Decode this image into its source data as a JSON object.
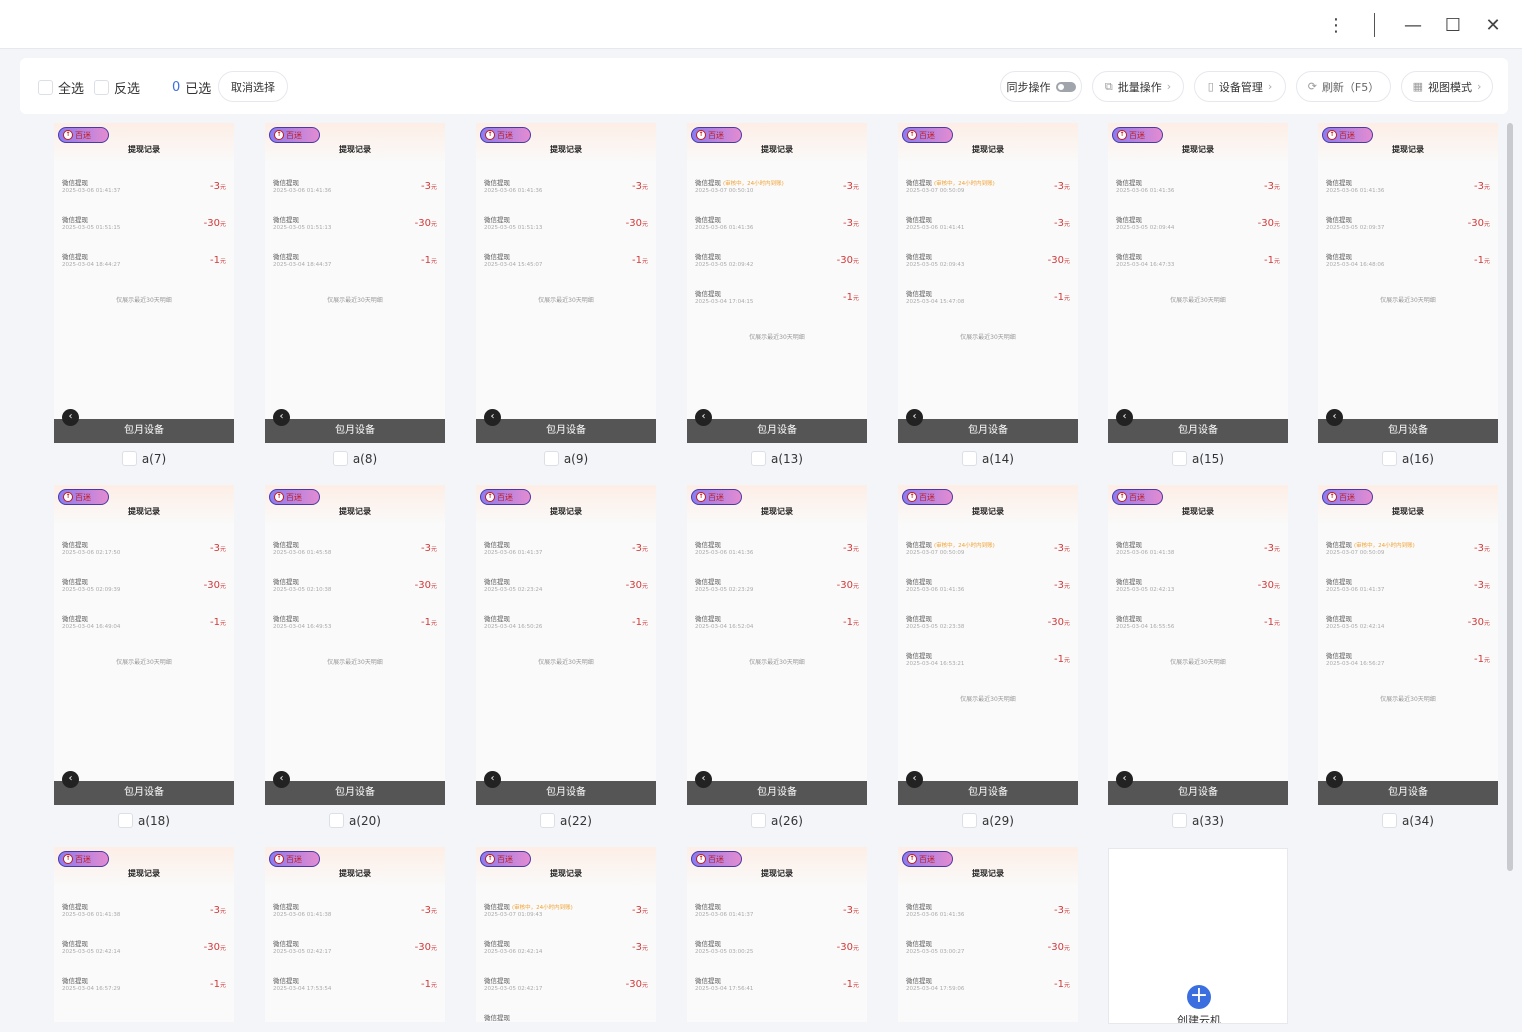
{
  "window": {
    "menu_icon": "more-vertical-icon",
    "minimize_icon": "minimize-icon",
    "maximize_icon": "maximize-icon",
    "close_icon": "close-icon"
  },
  "toolbar": {
    "select_all": "全选",
    "invert_select": "反选",
    "selected_count": "0",
    "selected_label": "已选",
    "cancel_select": "取消选择",
    "sync": "同步操作",
    "sync_on": false,
    "batch": "批量操作",
    "devices": "设备管理",
    "refresh": "刷新（F5）",
    "view_mode": "视图模式"
  },
  "screen": {
    "title": "提现记录",
    "logo": "百迷",
    "item_name": "微信提现",
    "pending_note": "(审核中，24小时内到账)",
    "unit": "元",
    "footer": "仅展示最近30天明细",
    "bottom_bar": "包月设备"
  },
  "devices": [
    {
      "label": "a(7)",
      "records": [
        {
          "amount": "-3",
          "time": "2025-03-06 01:41:37"
        },
        {
          "amount": "-30",
          "time": "2025-03-05 01:51:15"
        },
        {
          "amount": "-1",
          "time": "2025-03-04 18:44:27"
        }
      ]
    },
    {
      "label": "a(8)",
      "records": [
        {
          "amount": "-3",
          "time": "2025-03-06 01:41:36"
        },
        {
          "amount": "-30",
          "time": "2025-03-05 01:51:13"
        },
        {
          "amount": "-1",
          "time": "2025-03-04 18:44:37"
        }
      ]
    },
    {
      "label": "a(9)",
      "records": [
        {
          "amount": "-3",
          "time": "2025-03-06 01:41:36"
        },
        {
          "amount": "-30",
          "time": "2025-03-05 01:51:13"
        },
        {
          "amount": "-1",
          "time": "2025-03-04 15:45:07"
        }
      ]
    },
    {
      "label": "a(13)",
      "records": [
        {
          "amount": "-3",
          "time": "2025-03-07 00:50:10",
          "pending": true
        },
        {
          "amount": "-3",
          "time": "2025-03-06 01:41:36"
        },
        {
          "amount": "-30",
          "time": "2025-03-05 02:09:42"
        },
        {
          "amount": "-1",
          "time": "2025-03-04 17:04:15"
        }
      ]
    },
    {
      "label": "a(14)",
      "records": [
        {
          "amount": "-3",
          "time": "2025-03-07 00:50:09",
          "pending": true
        },
        {
          "amount": "-3",
          "time": "2025-03-06 01:41:41"
        },
        {
          "amount": "-30",
          "time": "2025-03-05 02:09:43"
        },
        {
          "amount": "-1",
          "time": "2025-03-04 15:47:08"
        }
      ]
    },
    {
      "label": "a(15)",
      "records": [
        {
          "amount": "-3",
          "time": "2025-03-06 01:41:36"
        },
        {
          "amount": "-30",
          "time": "2025-03-05 02:09:44"
        },
        {
          "amount": "-1",
          "time": "2025-03-04 16:47:33"
        }
      ]
    },
    {
      "label": "a(16)",
      "records": [
        {
          "amount": "-3",
          "time": "2025-03-06 01:41:36"
        },
        {
          "amount": "-30",
          "time": "2025-03-05 02:09:37"
        },
        {
          "amount": "-1",
          "time": "2025-03-04 16:48:06"
        }
      ]
    },
    {
      "label": "a(18)",
      "records": [
        {
          "amount": "-3",
          "time": "2025-03-06 02:17:50"
        },
        {
          "amount": "-30",
          "time": "2025-03-05 02:09:39"
        },
        {
          "amount": "-1",
          "time": "2025-03-04 16:49:04"
        }
      ]
    },
    {
      "label": "a(20)",
      "records": [
        {
          "amount": "-3",
          "time": "2025-03-06 01:45:58"
        },
        {
          "amount": "-30",
          "time": "2025-03-05 02:10:38"
        },
        {
          "amount": "-1",
          "time": "2025-03-04 16:49:53"
        }
      ]
    },
    {
      "label": "a(22)",
      "records": [
        {
          "amount": "-3",
          "time": "2025-03-06 01:41:37"
        },
        {
          "amount": "-30",
          "time": "2025-03-05 02:23:24"
        },
        {
          "amount": "-1",
          "time": "2025-03-04 16:50:26"
        }
      ]
    },
    {
      "label": "a(26)",
      "records": [
        {
          "amount": "-3",
          "time": "2025-03-06 01:41:36"
        },
        {
          "amount": "-30",
          "time": "2025-03-05 02:23:29"
        },
        {
          "amount": "-1",
          "time": "2025-03-04 16:52:04"
        }
      ]
    },
    {
      "label": "a(29)",
      "records": [
        {
          "amount": "-3",
          "time": "2025-03-07 00:50:09",
          "pending": true
        },
        {
          "amount": "-3",
          "time": "2025-03-06 01:41:36"
        },
        {
          "amount": "-30",
          "time": "2025-03-05 02:23:38"
        },
        {
          "amount": "-1",
          "time": "2025-03-04 16:53:21"
        }
      ]
    },
    {
      "label": "a(33)",
      "records": [
        {
          "amount": "-3",
          "time": "2025-03-06 01:41:38"
        },
        {
          "amount": "-30",
          "time": "2025-03-05 02:42:13"
        },
        {
          "amount": "-1",
          "time": "2025-03-04 16:55:56"
        }
      ]
    },
    {
      "label": "a(34)",
      "records": [
        {
          "amount": "-3",
          "time": "2025-03-07 00:50:09",
          "pending": true
        },
        {
          "amount": "-3",
          "time": "2025-03-06 01:41:37"
        },
        {
          "amount": "-30",
          "time": "2025-03-05 02:42:14"
        },
        {
          "amount": "-1",
          "time": "2025-03-04 16:56:27"
        }
      ]
    },
    {
      "label": "",
      "records": [
        {
          "amount": "-3",
          "time": "2025-03-06 01:41:38"
        },
        {
          "amount": "-30",
          "time": "2025-03-05 02:42:14"
        },
        {
          "amount": "-1",
          "time": "2025-03-04 16:57:29"
        }
      ]
    },
    {
      "label": "",
      "records": [
        {
          "amount": "-3",
          "time": "2025-03-06 01:41:38"
        },
        {
          "amount": "-30",
          "time": "2025-03-05 02:42:17"
        },
        {
          "amount": "-1",
          "time": "2025-03-04 17:53:54"
        }
      ]
    },
    {
      "label": "",
      "records": [
        {
          "amount": "-3",
          "time": "2025-03-07 01:09:43",
          "pending": true
        },
        {
          "amount": "-3",
          "time": "2025-03-06 02:42:14"
        },
        {
          "amount": "-30",
          "time": "2025-03-05 02:42:17"
        },
        {
          "amount": "",
          "time": ""
        }
      ]
    },
    {
      "label": "",
      "records": [
        {
          "amount": "-3",
          "time": "2025-03-06 01:41:37"
        },
        {
          "amount": "-30",
          "time": "2025-03-05 03:00:25"
        },
        {
          "amount": "-1",
          "time": "2025-03-04 17:56:41"
        }
      ]
    },
    {
      "label": "",
      "records": [
        {
          "amount": "-3",
          "time": "2025-03-06 01:41:36"
        },
        {
          "amount": "-30",
          "time": "2025-03-05 03:00:27"
        },
        {
          "amount": "-1",
          "time": "2025-03-04 17:59:06"
        }
      ]
    }
  ],
  "add_card": {
    "label": "创建云机",
    "icon": "plus-circle-icon"
  },
  "colors": {
    "accent": "#3b6fe0",
    "amount": "#d03a3a",
    "pending": "#f0a030",
    "bottom_bar": "#555555"
  }
}
